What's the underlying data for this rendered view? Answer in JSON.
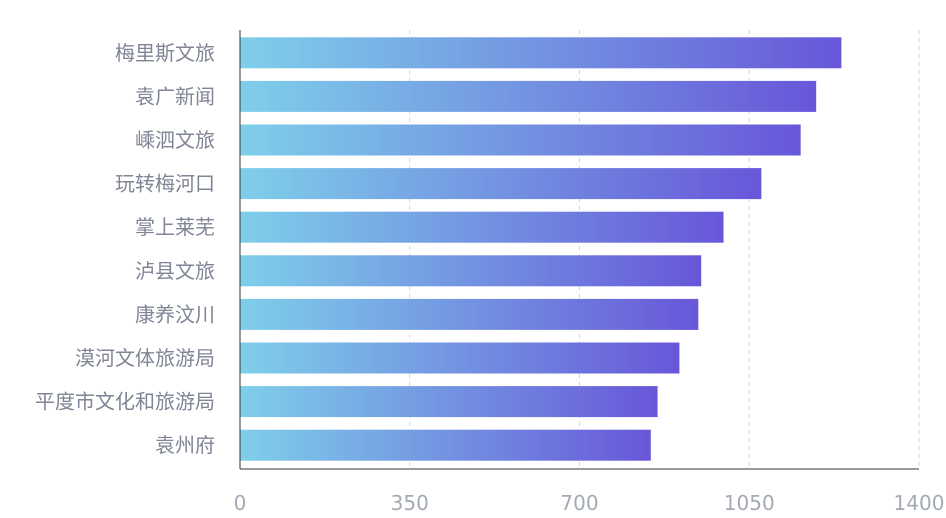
{
  "chart_data": {
    "type": "bar",
    "orientation": "horizontal",
    "categories": [
      "梅里斯文旅",
      "袁广新闻",
      "嵊泗文旅",
      "玩转梅河口",
      "掌上莱芜",
      "泸县文旅",
      "康养汶川",
      "漠河文体旅游局",
      "平度市文化和旅游局",
      "袁州府"
    ],
    "values": [
      1240,
      1188,
      1156,
      1075,
      997,
      951,
      945,
      906,
      861,
      847
    ],
    "xlim": [
      0,
      1400
    ],
    "xticks": [
      "0",
      "350",
      "700",
      "1050",
      "1400"
    ],
    "grid": true,
    "gradient": [
      "#7ecfea",
      "#6857d9"
    ]
  }
}
